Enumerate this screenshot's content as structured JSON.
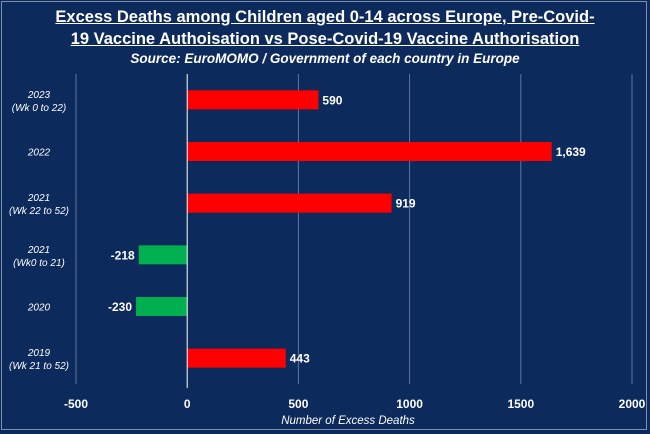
{
  "colors": {
    "background": "#0c2a5b",
    "positive": "#ff0000",
    "negative": "#00b050",
    "grid": "#5f76a0",
    "text": "#ffffff"
  },
  "chart_data": {
    "type": "bar",
    "orientation": "horizontal",
    "title_line1": "Excess Deaths among Children aged 0-14 across Europe, Pre-Covid-",
    "title_line2": "19 Vaccine Authoisation vs Pose-Covid-19 Vaccine Authorisation",
    "subtitle": "Source: EuroMOMO / Government of each country in Europe",
    "xlabel": "Number of Excess Deaths",
    "ylabel": "",
    "xlim": [
      -500,
      2000
    ],
    "xticks": [
      -500,
      0,
      500,
      1000,
      1500,
      2000
    ],
    "grid": true,
    "categories": [
      {
        "line1": "2023",
        "line2": "(Wk 0 to 22)"
      },
      {
        "line1": "2022",
        "line2": ""
      },
      {
        "line1": "2021",
        "line2": "(Wk 22 to 52)"
      },
      {
        "line1": "2021",
        "line2": "(Wk0 to 21)"
      },
      {
        "line1": "2020",
        "line2": ""
      },
      {
        "line1": "2019",
        "line2": "(Wk 21 to 52)"
      }
    ],
    "values": [
      590,
      1639,
      919,
      -218,
      -230,
      443
    ],
    "value_labels": [
      "590",
      "1,639",
      "919",
      "-218",
      "-230",
      "443"
    ]
  }
}
